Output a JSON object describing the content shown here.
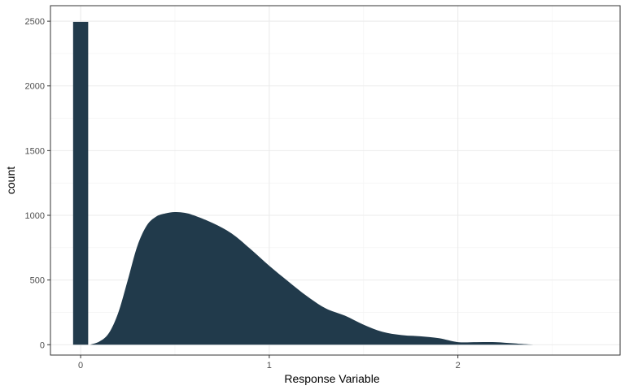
{
  "chart_data": {
    "type": "area",
    "xlabel": "Response Variable",
    "ylabel": "count",
    "xlim": [
      -0.16,
      2.86
    ],
    "ylim": [
      -80,
      2620
    ],
    "x_ticks": [
      0,
      1,
      2
    ],
    "x_tick_labels": [
      "0",
      "1",
      "2"
    ],
    "y_ticks": [
      0,
      500,
      1000,
      1500,
      2000,
      2500
    ],
    "y_tick_labels": [
      "0",
      "500",
      "1000",
      "1500",
      "2000",
      "2500"
    ],
    "grid": true,
    "fill_color": "#213a4b",
    "zero_bar": {
      "x_start": -0.04,
      "x_end": 0.04,
      "value": 2495
    },
    "density_curve": {
      "x": [
        0.05,
        0.1,
        0.15,
        0.2,
        0.25,
        0.3,
        0.35,
        0.4,
        0.45,
        0.5,
        0.55,
        0.6,
        0.7,
        0.8,
        0.9,
        1.0,
        1.1,
        1.2,
        1.3,
        1.4,
        1.5,
        1.6,
        1.7,
        1.8,
        1.9,
        2.0,
        2.1,
        2.2,
        2.3,
        2.4
      ],
      "y": [
        0,
        25,
        90,
        250,
        500,
        760,
        920,
        990,
        1015,
        1025,
        1020,
        1000,
        940,
        860,
        740,
        610,
        490,
        375,
        280,
        225,
        155,
        100,
        75,
        65,
        50,
        20,
        20,
        20,
        10,
        0
      ]
    }
  }
}
